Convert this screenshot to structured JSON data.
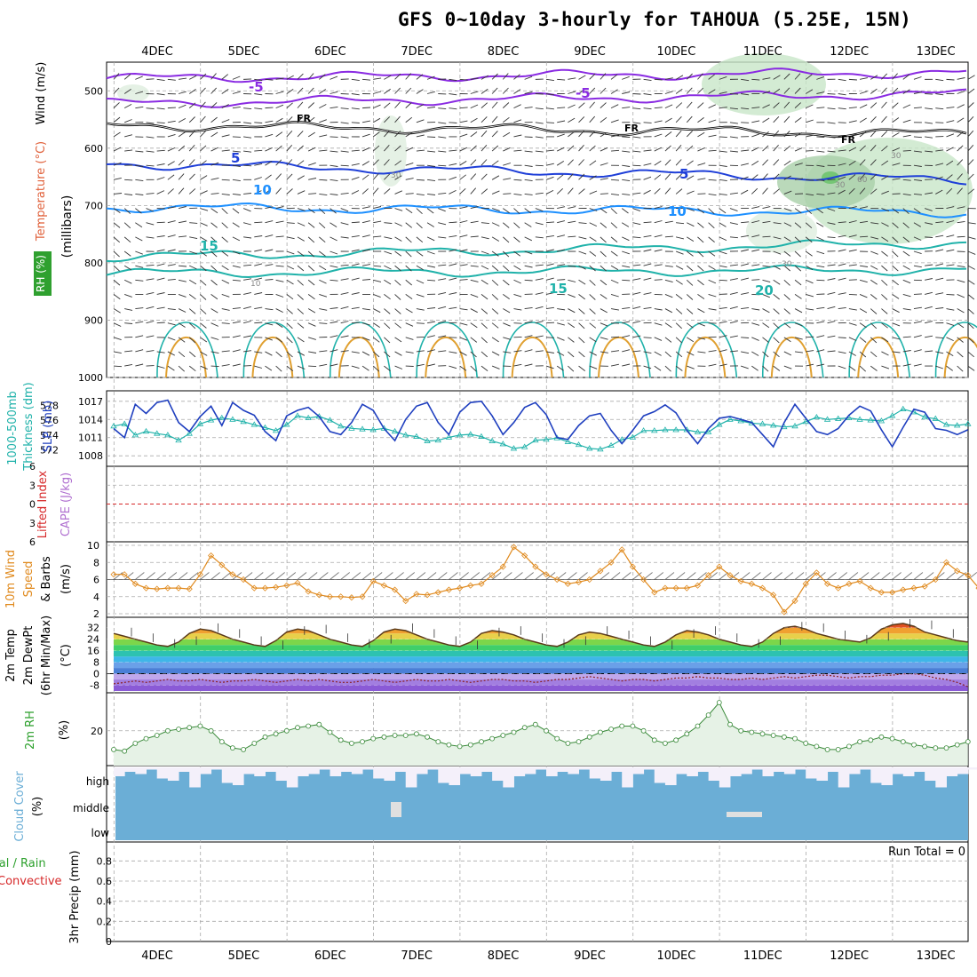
{
  "title": "GFS 0~10day 3-hourly for TAHOUA (5.25E, 15N)",
  "dates": [
    "4DEC",
    "5DEC",
    "6DEC",
    "7DEC",
    "8DEC",
    "9DEC",
    "10DEC",
    "11DEC",
    "12DEC",
    "13DEC"
  ],
  "colors": {
    "temperature": "#8a2be2",
    "wind_label": "#000000",
    "rh_green": "#2fa02f",
    "slp": "#1f3fbf",
    "thickness": "#20b2aa",
    "lifted_index": "#d62728",
    "cape": "#b070d0",
    "wind_speed": "#e08a1e",
    "temp_2m": "#d2501e",
    "cloud": "#6baed6",
    "rain_total": "#2ca02c",
    "convective": "#d62728"
  },
  "panels": {
    "upper_air": {
      "labels": [
        "Wind (m/s)",
        "Temperature (°C)",
        "RH (%)",
        "(millibars)"
      ]
    },
    "slp_thickness": {
      "labels": [
        "1000-500mb",
        "Thickness (dm)",
        "SLP (mb)"
      ]
    },
    "stability": {
      "labels": [
        "Lifted Index",
        "CAPE (J/kg)"
      ]
    },
    "wind10m": {
      "labels": [
        "10m Wind",
        "Speed",
        "& Barbs",
        "(m/s)"
      ]
    },
    "temp2m": {
      "labels": [
        "2m Temp",
        "2m DewPt",
        "(6hr Min/Max)",
        "(°C)"
      ]
    },
    "rh2m": {
      "labels": [
        "2m RH",
        "(%)"
      ]
    },
    "cloud": {
      "labels": [
        "Cloud Cover",
        "(%)"
      ],
      "levels": [
        "high",
        "middle",
        "low"
      ]
    },
    "precip": {
      "labels": [
        "Total / Rain",
        "Convective",
        "3hr Precip (mm)"
      ],
      "run_total": "Run Total = 0"
    }
  },
  "chart_data": [
    {
      "type": "line",
      "name": "upper_air_cross_section",
      "y_axis": {
        "label": "millibars",
        "ticks": [
          500,
          600,
          700,
          800,
          900,
          1000
        ],
        "range": [
          450,
          1000
        ],
        "inverted": true
      },
      "contours": [
        {
          "variable": "temperature",
          "value": -5,
          "labels": [
            "-5",
            "-5"
          ],
          "color": "#8a2be2"
        },
        {
          "variable": "temperature",
          "value": 0,
          "labels": [
            "FR",
            "FR",
            "FR"
          ],
          "color": "#000000"
        },
        {
          "variable": "temperature",
          "value": 5,
          "labels": [
            "5",
            "5"
          ],
          "color": "#1f3fd8"
        },
        {
          "variable": "temperature",
          "value": 10,
          "labels": [
            "10",
            "10"
          ],
          "color": "#1e90ff"
        },
        {
          "variable": "temperature",
          "value": 15,
          "labels": [
            "15",
            "15"
          ],
          "color": "#20b2aa"
        },
        {
          "variable": "temperature",
          "value": 20,
          "labels": [
            "20"
          ],
          "color": "#20b2aa"
        }
      ],
      "rh_contour_labels": [
        "30",
        "30",
        "60",
        "30",
        "30",
        "10"
      ]
    },
    {
      "type": "line",
      "name": "slp_thickness",
      "yleft": {
        "label": "1000-500mb Thickness (dm)",
        "ticks": [
          572,
          574,
          576,
          578
        ]
      },
      "yright": {
        "label": "SLP (mb)",
        "ticks": [
          1008,
          1011,
          1014,
          1017
        ]
      },
      "series": [
        {
          "name": "SLP",
          "values": [
            1012.5,
            1011,
            1016.5,
            1015,
            1016.8,
            1017.2,
            1013.5,
            1012,
            1014.5,
            1016.2,
            1013,
            1016.8,
            1015.5,
            1014.7,
            1012,
            1010.5,
            1014.6,
            1015.5,
            1016,
            1014.5,
            1012,
            1011.5,
            1013.5,
            1016.5,
            1015.5,
            1012.5,
            1010.5,
            1014,
            1016.2,
            1016.8,
            1013.5,
            1011.5,
            1015.2,
            1016.8,
            1017,
            1014.6,
            1011.5,
            1013.5,
            1016,
            1016.8,
            1014.8,
            1011,
            1010.7,
            1013,
            1014.6,
            1015,
            1012.2,
            1010,
            1012.2,
            1014.6,
            1015.3,
            1016.4,
            1015.1,
            1012.2,
            1010,
            1012.5,
            1014.2,
            1014.5,
            1014,
            1013.5,
            1011.5,
            1009.5,
            1013.5,
            1016.5,
            1014.2,
            1012,
            1011.5,
            1012.5,
            1014.7,
            1016.2,
            1015.4,
            1012.3,
            1009.5,
            1012.7,
            1015.7,
            1015.2,
            1012.5,
            1012.2,
            1011.5,
            1012.3
          ]
        },
        {
          "name": "Thickness",
          "values": [
            575.2,
            575.5,
            574,
            574.5,
            574.2,
            574,
            573.3,
            574.2,
            575.5,
            576,
            576.3,
            576.1,
            575.8,
            575.4,
            575,
            574.6,
            575.4,
            576.6,
            576.3,
            576.5,
            576,
            575.2,
            574.9,
            574.8,
            574.7,
            574.9,
            574.5,
            574,
            573.8,
            573.2,
            573.3,
            573.7,
            574,
            574.1,
            573.8,
            573.2,
            572.8,
            572.2,
            572.4,
            573.3,
            573.4,
            573.6,
            573.1,
            572.7,
            572.2,
            572.1,
            572.6,
            573.4,
            573.7,
            574.6,
            574.6,
            574.7,
            574.7,
            574.7,
            574.4,
            574.4,
            575.4,
            576.1,
            575.9,
            575.6,
            575.5,
            575.3,
            575.1,
            575.2,
            575.8,
            576.4,
            576.1,
            576.2,
            576.3,
            576.1,
            576,
            575.9,
            576.6,
            577.5,
            577.1,
            576.4,
            576.2,
            575.4,
            575.3,
            575.5
          ]
        }
      ]
    },
    {
      "type": "line",
      "name": "lifted_index_cape",
      "y_axis": {
        "ticks": [
          6,
          3,
          0,
          -3,
          -6
        ],
        "tick_labels": [
          "6",
          "3",
          "0",
          "3",
          "6"
        ]
      },
      "series": [
        {
          "name": "Lifted Index",
          "values": []
        },
        {
          "name": "CAPE",
          "values": []
        }
      ]
    },
    {
      "type": "line",
      "name": "wind_10m",
      "y_axis": {
        "label": "m/s",
        "ticks": [
          2,
          4,
          6,
          8,
          10
        ],
        "range": [
          2,
          10
        ]
      },
      "series": [
        {
          "name": "Speed",
          "values": [
            6.6,
            6.6,
            5.5,
            5,
            4.9,
            5,
            5,
            4.9,
            6.6,
            8.8,
            7.7,
            6.6,
            6,
            5,
            5,
            5.1,
            5.3,
            5.6,
            4.6,
            4.2,
            4,
            4,
            3.9,
            4,
            5.8,
            5.3,
            4.8,
            3.5,
            4.3,
            4.2,
            4.5,
            4.8,
            5,
            5.3,
            5.5,
            6.5,
            7.5,
            9.8,
            8.8,
            7.5,
            6.6,
            6,
            5.5,
            5.7,
            6,
            7,
            8,
            9.5,
            7.5,
            6,
            4.5,
            5,
            5,
            5,
            5.3,
            6.5,
            7.5,
            6.5,
            5.8,
            5.5,
            5,
            4.2,
            2.2,
            3.5,
            5.5,
            6.8,
            5.5,
            5,
            5.5,
            5.8,
            5,
            4.5,
            4.5,
            4.8,
            5,
            5.2,
            6,
            8,
            7,
            6.5,
            5,
            5.5,
            6,
            6.5,
            7.5
          ]
        }
      ]
    },
    {
      "type": "area",
      "name": "temp_2m",
      "y_axis": {
        "label": "°C",
        "ticks": [
          -8,
          0,
          8,
          16,
          24,
          32
        ],
        "range": [
          -12,
          38
        ]
      },
      "series": [
        {
          "name": "2m Temp",
          "values": [
            28,
            26,
            24,
            22,
            20,
            19,
            22,
            28,
            31,
            30,
            27,
            24,
            22,
            20,
            19,
            23,
            29,
            31,
            30,
            27,
            24,
            22,
            20,
            19,
            23,
            29,
            31,
            30,
            27,
            24,
            22,
            20,
            19,
            22,
            28,
            30,
            29,
            27,
            24,
            22,
            20,
            19,
            22,
            27,
            29,
            28,
            26,
            24,
            22,
            20,
            19,
            22,
            27,
            30,
            29,
            27,
            24,
            22,
            20,
            19,
            22,
            28,
            32,
            33,
            31,
            28,
            26,
            24,
            23,
            22,
            25,
            31,
            34,
            35,
            33,
            29,
            27,
            25,
            23,
            22
          ]
        },
        {
          "name": "2m DewPt",
          "values": [
            -7,
            -6,
            -5,
            -6,
            -5,
            -4,
            -5,
            -5,
            -4,
            -5,
            -6,
            -5,
            -5,
            -4,
            -5,
            -6,
            -5,
            -4,
            -5,
            -4,
            -5,
            -6,
            -6,
            -5,
            -4,
            -5,
            -6,
            -5,
            -4,
            -5,
            -5,
            -4,
            -5,
            -6,
            -5,
            -4,
            -4,
            -5,
            -5,
            -6,
            -5,
            -4,
            -4,
            -3,
            -2,
            -3,
            -4,
            -5,
            -4,
            -4,
            -5,
            -4,
            -3,
            -3,
            -2,
            -3,
            -3,
            -4,
            -4,
            -3,
            -4,
            -3,
            -2,
            -3,
            -2,
            -1,
            -1,
            -2,
            -3,
            -2,
            -2,
            -1,
            -1,
            0,
            0,
            -1,
            -3,
            -4,
            -6,
            -9
          ]
        }
      ]
    },
    {
      "type": "area",
      "name": "rh_2m",
      "y_axis": {
        "label": "%",
        "ticks": [
          20
        ]
      },
      "series": [
        {
          "name": "2m RH",
          "values": [
            8,
            7,
            12,
            15,
            17,
            20,
            21,
            22,
            23,
            20,
            13,
            9,
            8,
            12,
            16,
            18,
            20,
            22,
            23,
            24,
            19,
            14,
            12,
            13,
            15,
            16,
            17,
            17,
            18,
            16,
            13,
            11,
            10,
            11,
            13,
            15,
            17,
            19,
            22,
            24,
            20,
            15,
            12,
            13,
            16,
            19,
            21,
            23,
            23,
            20,
            14,
            12,
            14,
            18,
            23,
            30,
            38,
            24,
            20,
            19,
            18,
            17,
            16,
            15,
            12,
            10,
            8,
            8,
            10,
            13,
            14,
            16,
            15,
            13,
            11,
            10,
            9,
            9,
            11,
            13
          ]
        }
      ]
    },
    {
      "type": "area",
      "name": "cloud_cover",
      "levels": [
        "high",
        "middle",
        "low"
      ]
    },
    {
      "type": "bar",
      "name": "precip_3hr",
      "y_axis": {
        "label": "mm",
        "ticks": [
          0,
          0.2,
          0.4,
          0.6,
          0.8
        ],
        "range": [
          0,
          0.9
        ]
      },
      "series": [
        {
          "name": "Total / Rain",
          "values": []
        },
        {
          "name": "Convective",
          "values": []
        }
      ]
    }
  ]
}
